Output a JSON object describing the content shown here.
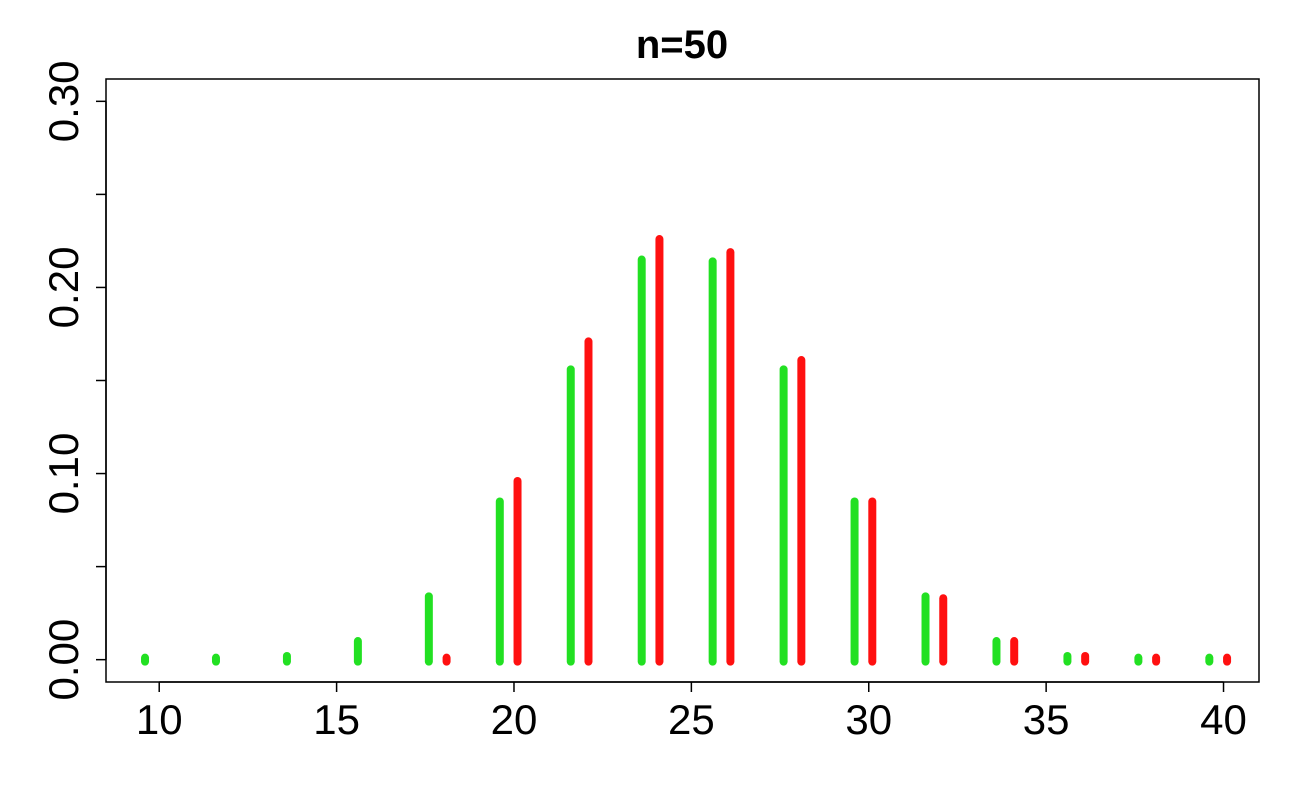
{
  "chart_data": {
    "type": "bar",
    "title": "n=50",
    "xlabel": "",
    "ylabel": "",
    "xlim": [
      8.5,
      41
    ],
    "ylim": [
      -0.012,
      0.312
    ],
    "x_ticks": [
      10,
      15,
      20,
      25,
      30,
      35,
      40
    ],
    "x_tick_labels": [
      "10",
      "15",
      "20",
      "25",
      "30",
      "35",
      "40"
    ],
    "y_ticks": [
      0.0,
      0.05,
      0.1,
      0.15,
      0.2,
      0.25,
      0.3
    ],
    "y_tick_labels": [
      "0.00",
      "",
      "0.10",
      "",
      "0.20",
      "",
      "0.30"
    ],
    "grid": false,
    "legend": "none",
    "series": [
      {
        "color": "#22e022",
        "x": [
          9.6,
          11.6,
          13.6,
          15.6,
          17.6,
          19.6,
          21.6,
          23.6,
          25.6,
          27.6,
          29.6,
          31.6,
          33.6,
          35.6,
          37.6,
          39.6
        ],
        "values": [
          0.0005,
          0.0006,
          0.002,
          0.01,
          0.034,
          0.085,
          0.156,
          0.215,
          0.214,
          0.156,
          0.085,
          0.034,
          0.01,
          0.002,
          0.0006,
          0.0005
        ]
      },
      {
        "color": "#ff1010",
        "x": [
          18.1,
          20.1,
          22.1,
          24.1,
          26.1,
          28.1,
          30.1,
          32.1,
          34.1,
          36.1,
          38.1,
          40.1
        ],
        "values": [
          0.001,
          0.096,
          0.171,
          0.226,
          0.219,
          0.161,
          0.085,
          0.033,
          0.01,
          0.002,
          0.0006,
          0.0005
        ]
      }
    ]
  }
}
